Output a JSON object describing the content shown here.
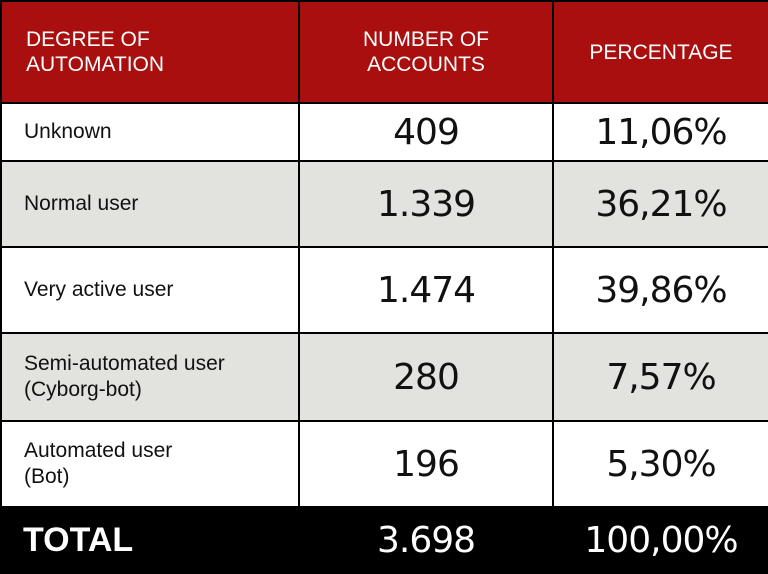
{
  "chart_data": {
    "type": "table",
    "columns": [
      "DEGREE OF AUTOMATION",
      "NUMBER OF ACCOUNTS",
      "PERCENTAGE"
    ],
    "rows": [
      {
        "label": "Unknown",
        "accounts": "409",
        "percentage": "11,06%"
      },
      {
        "label": "Normal user",
        "accounts": "1.339",
        "percentage": "36,21%"
      },
      {
        "label": "Very active user",
        "accounts": "1.474",
        "percentage": "39,86%"
      },
      {
        "label": "Semi-automated user (Cyborg-bot)",
        "accounts": "280",
        "percentage": "7,57%"
      },
      {
        "label": "Automated user (Bot)",
        "accounts": "196",
        "percentage": "5,30%"
      }
    ],
    "total": {
      "label": "TOTAL",
      "accounts": "3.698",
      "percentage": "100,00%"
    }
  },
  "header": {
    "col1_line1": "DEGREE OF",
    "col1_line2": "AUTOMATION",
    "col2_line1": "NUMBER OF",
    "col2_line2": "ACCOUNTS",
    "col3": "PERCENTAGE"
  },
  "label_lines": {
    "row4_line1": "Semi-automated user",
    "row4_line2": "(Cyborg-bot)",
    "row5_line1": "Automated user",
    "row5_line2": "(Bot)"
  },
  "colors": {
    "header_bg": "#a90f0f",
    "row_alt_bg": "#e2e2df",
    "total_bg": "#000000"
  }
}
